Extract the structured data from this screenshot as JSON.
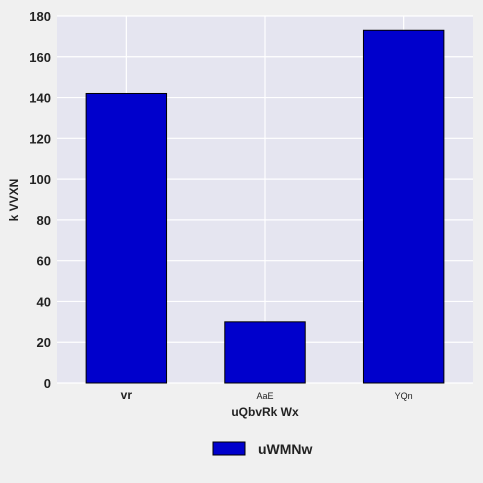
{
  "chart_data": {
    "type": "bar",
    "categories": [
      "vr",
      "AaE",
      "YQn"
    ],
    "series": [
      {
        "name": "uWMNw",
        "values": [
          142,
          30,
          173
        ],
        "color": "#0000cc"
      }
    ],
    "xlabel": "uQbvRk Wx",
    "ylabel": "k VVXN",
    "ylim": [
      0,
      180
    ],
    "yticks": [
      0,
      20,
      40,
      60,
      80,
      100,
      120,
      140,
      160,
      180
    ],
    "grid": true,
    "legend": "bottom-center",
    "plot_background": "#e5e5f0"
  }
}
